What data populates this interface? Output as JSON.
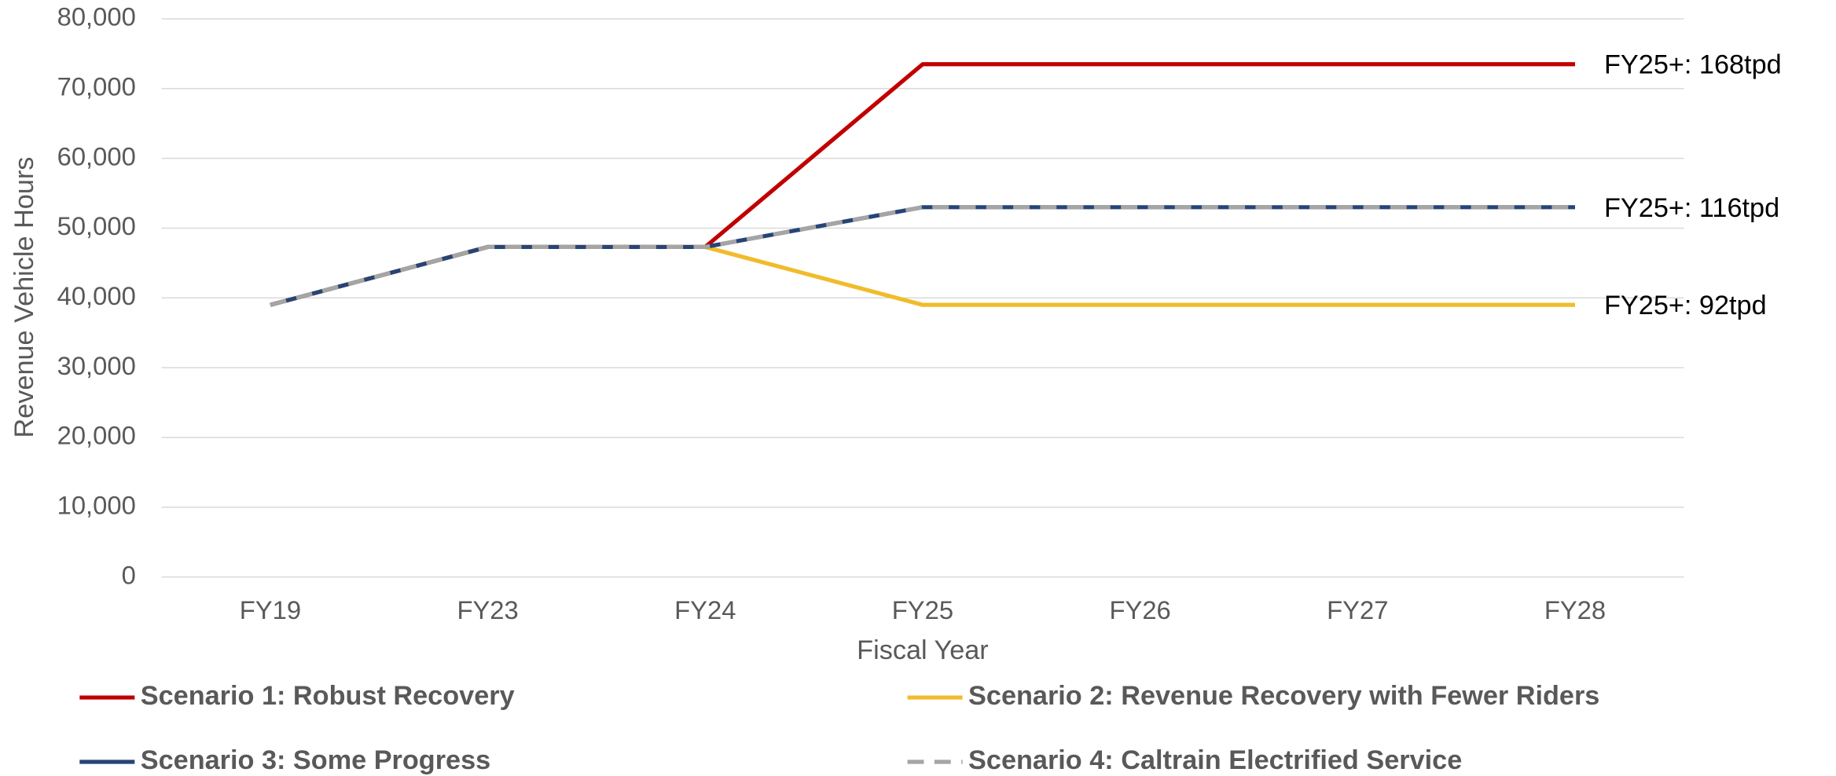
{
  "chart_data": {
    "type": "line",
    "categories": [
      "FY19",
      "FY23",
      "FY24",
      "FY25",
      "FY26",
      "FY27",
      "FY28"
    ],
    "series": [
      {
        "name": "Scenario 1: Robust Recovery",
        "color": "#c00000",
        "values": [
          39000,
          47300,
          47300,
          73500,
          73500,
          73500,
          73500
        ]
      },
      {
        "name": "Scenario 2: Revenue Recovery with Fewer Riders",
        "color": "#f0bc2c",
        "values": [
          39000,
          47300,
          47300,
          39000,
          39000,
          39000,
          39000
        ]
      },
      {
        "name": "Scenario 3: Some Progress",
        "color": "#264478",
        "values": [
          39000,
          47300,
          47300,
          53000,
          53000,
          53000,
          53000
        ]
      },
      {
        "name": "Scenario 4: Caltrain Electrified Service",
        "color": "#a5a5a5",
        "dashed": true,
        "values": [
          39000,
          47300,
          47300,
          53000,
          53000,
          53000,
          53000
        ]
      }
    ],
    "xlabel": "Fiscal Year",
    "ylabel": "Revenue Vehicle Hours",
    "ylim": [
      0,
      80000
    ],
    "yticks": [
      0,
      {
        "value": 10000,
        "label": "10,000"
      },
      {
        "value": 20000,
        "label": "20,000"
      },
      {
        "value": 30000,
        "label": "30,000"
      },
      {
        "value": 40000,
        "label": "40,000"
      },
      {
        "value": 50000,
        "label": "50,000"
      },
      {
        "value": 60000,
        "label": "60,000"
      },
      {
        "value": 70000,
        "label": "70,000"
      },
      {
        "value": 80000,
        "label": "80,000"
      }
    ],
    "grid": true,
    "legend": "bottom",
    "annotations": [
      "FY25+: 168tpd",
      "FY25+: 116tpd",
      "FY25+: 92tpd"
    ]
  }
}
